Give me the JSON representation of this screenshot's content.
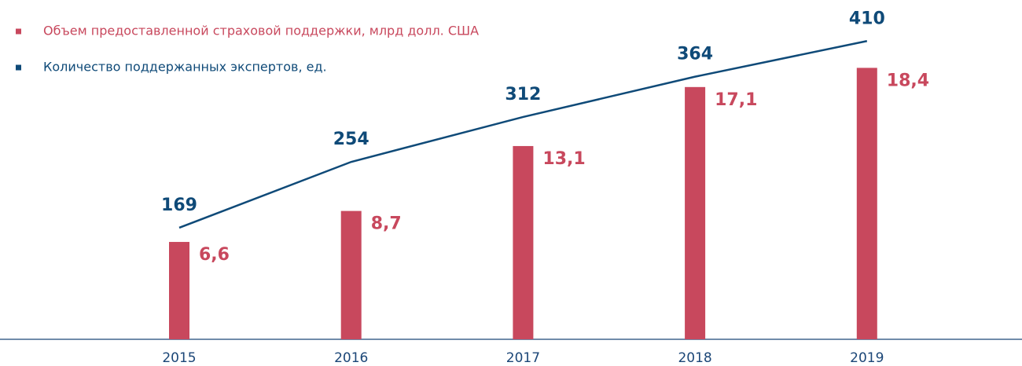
{
  "chart_data": {
    "type": "bar",
    "categories": [
      "2015",
      "2016",
      "2017",
      "2018",
      "2019"
    ],
    "series": [
      {
        "name": "Объем предоставленной страховой поддержки, млрд долл. США",
        "color": "#c8485d",
        "values": [
          6.6,
          8.7,
          13.1,
          17.1,
          18.4
        ],
        "value_labels": [
          "6,6",
          "8,7",
          "13,1",
          "17,1",
          "18,4"
        ]
      },
      {
        "name": "Количество поддержанных экспертов, ед.",
        "color": "#0f4a78",
        "type": "line",
        "axis": "y2",
        "values": [
          169,
          254,
          312,
          364,
          410
        ]
      }
    ],
    "ylim": [
      0,
      23
    ],
    "y2lim": [
      25,
      463
    ],
    "legend": "top-left"
  }
}
